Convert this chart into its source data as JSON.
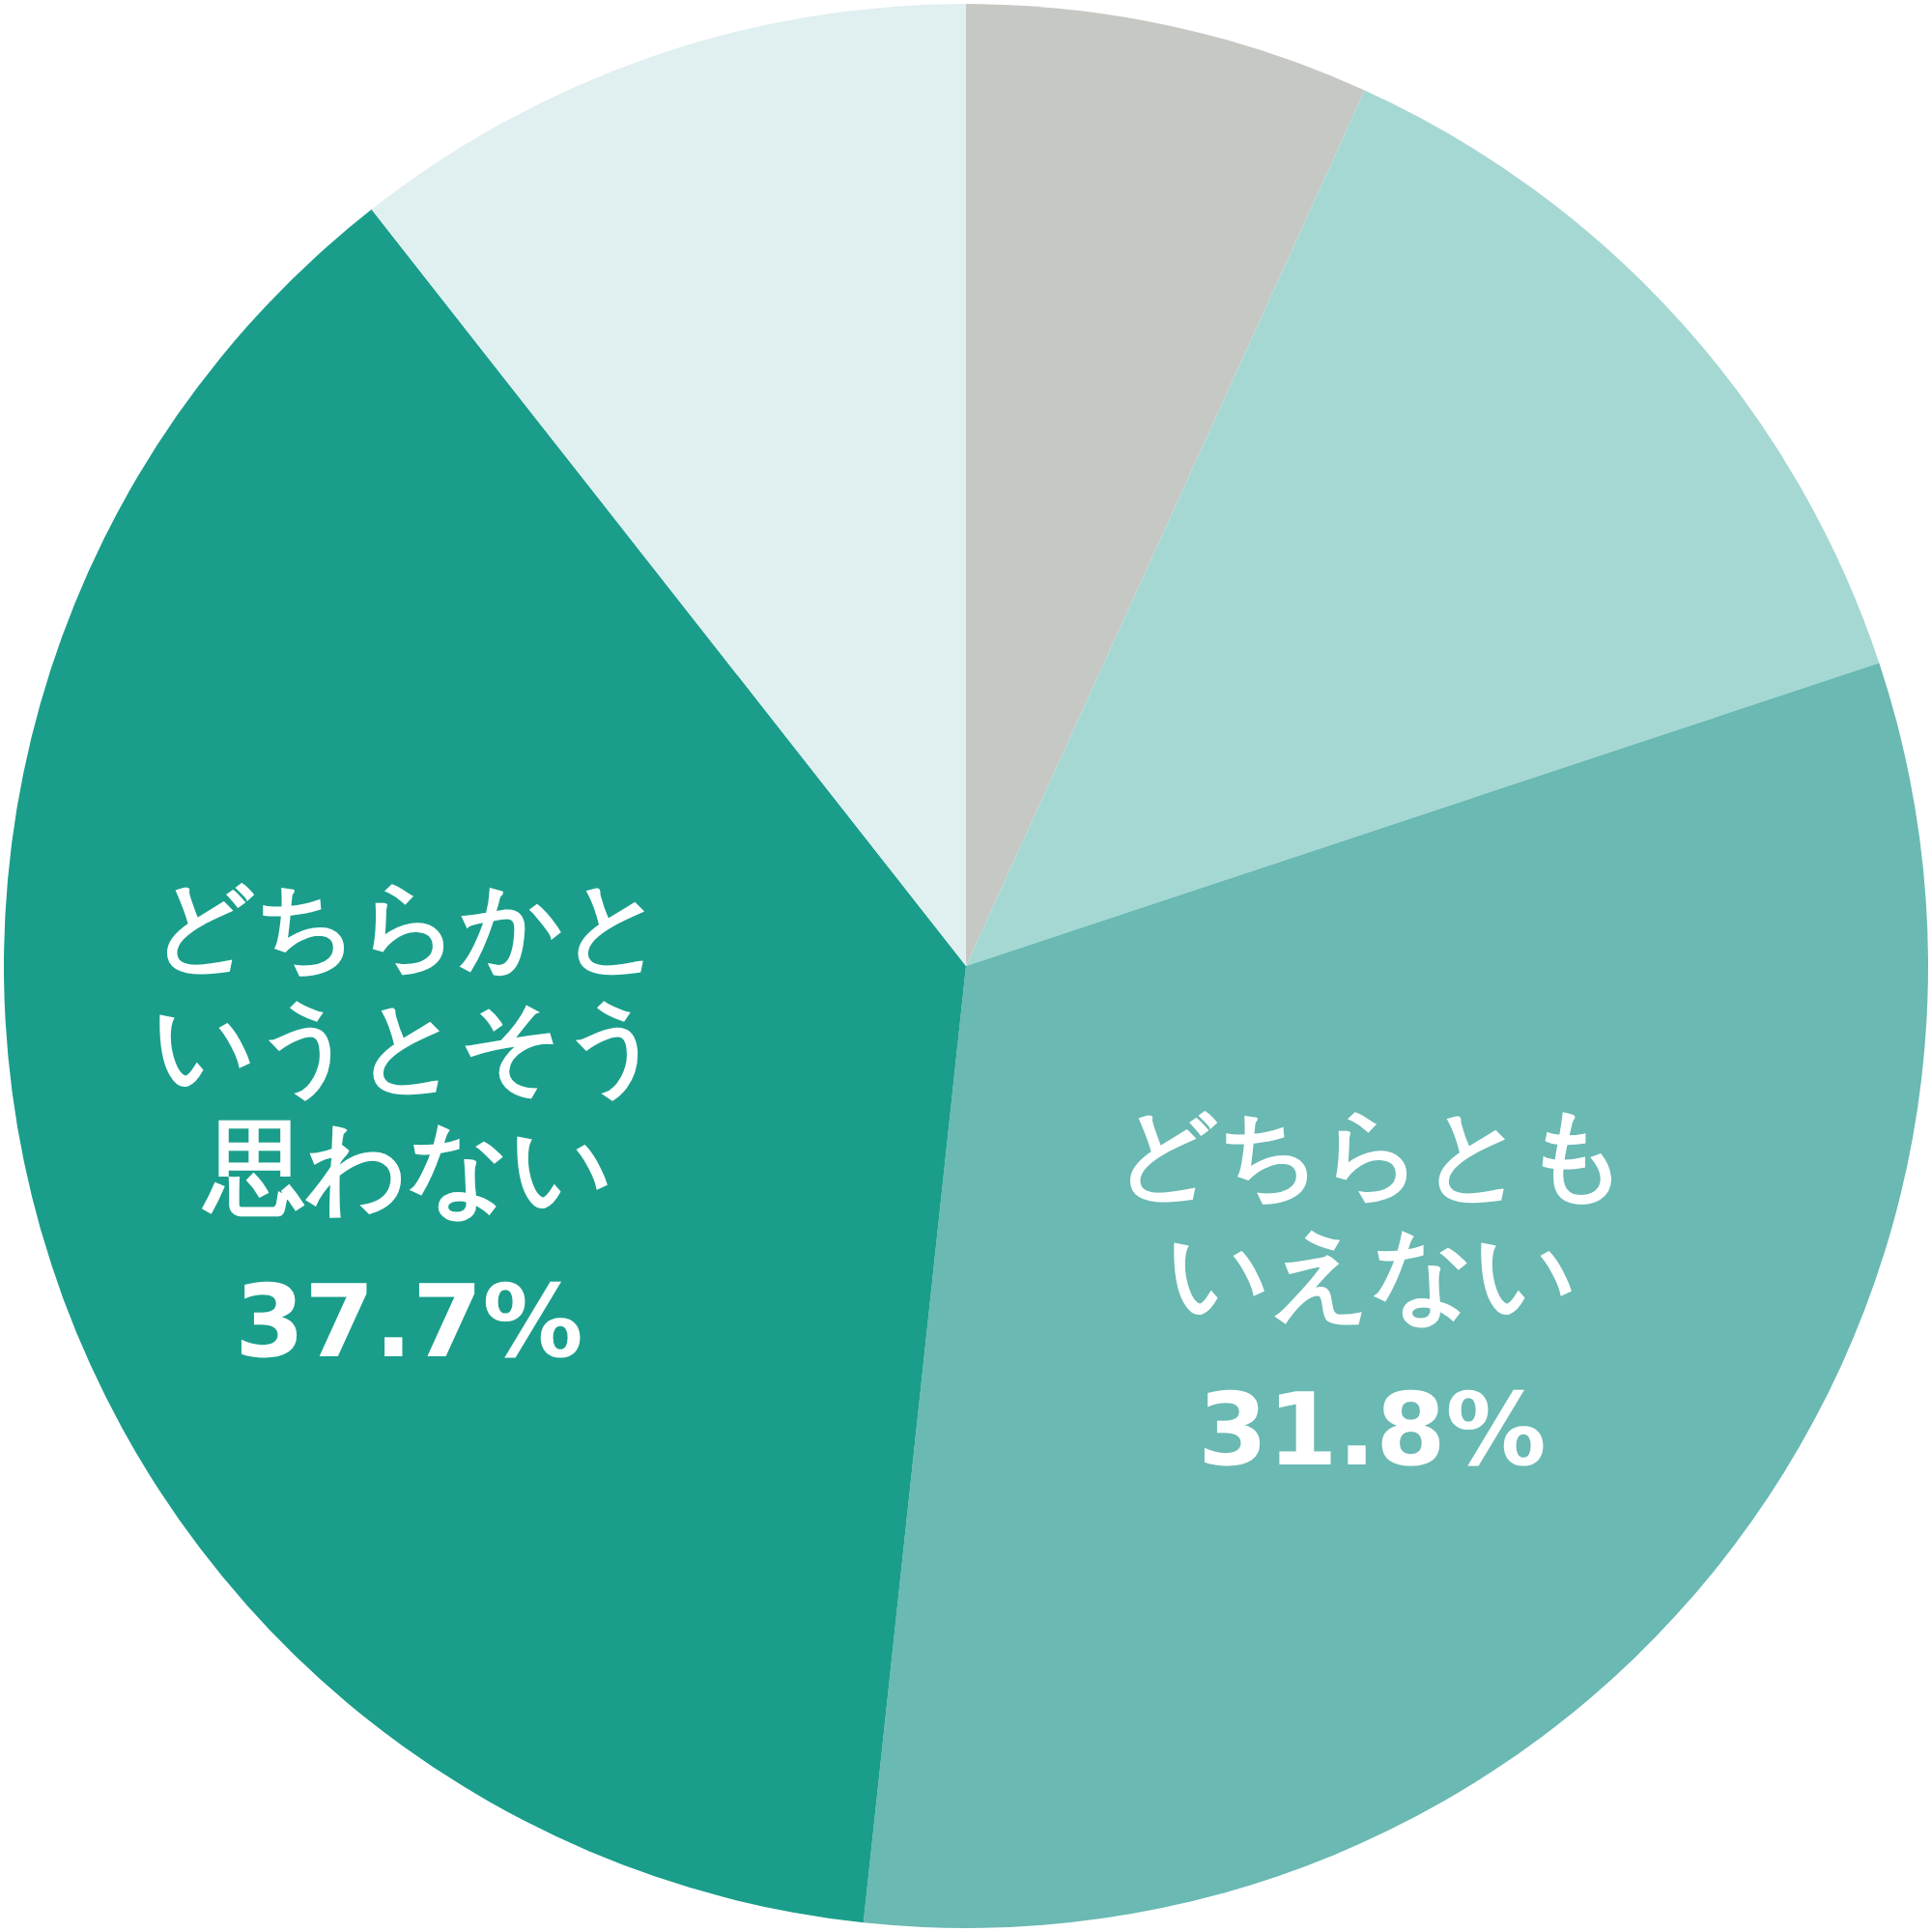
{
  "chart_data": {
    "type": "pie",
    "categories": [
      null,
      null,
      "どちらともいえない",
      "どちらかというとそう思わない",
      null
    ],
    "values": [
      6.8,
      13.1,
      31.8,
      37.7,
      10.6
    ],
    "value_labels": [
      null,
      null,
      "31.8%",
      "37.7%",
      null
    ],
    "colors": [
      "#c6c8c4",
      "#a6d8d3",
      "#6ab9b3",
      "#1a9e8b",
      "#e0eff0"
    ]
  }
}
